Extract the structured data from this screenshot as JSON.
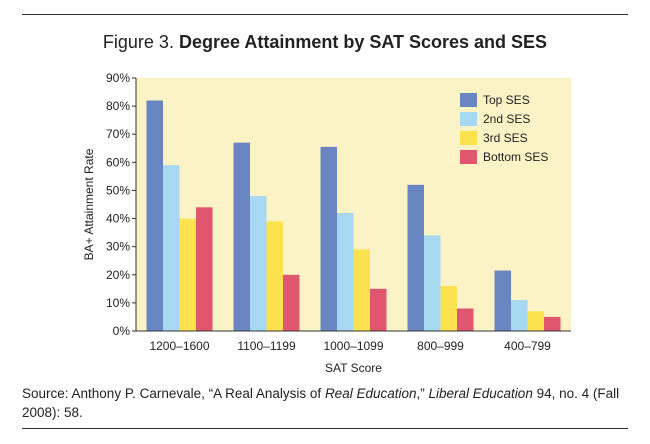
{
  "figure": {
    "label": "Figure 3.",
    "title": "Degree Attainment by SAT Scores and SES"
  },
  "source": {
    "prefix": "Source: Anthony P. Carnevale, “A Real Analysis of ",
    "italic1": "Real Education",
    "mid": ",” ",
    "italic2": "Liberal Education",
    "suffix": " 94, no. 4 (Fall 2008): 58."
  },
  "colors": {
    "plot_background": "#fbf3c6",
    "series": [
      "#6a86c2",
      "#a6d8f2",
      "#fde24f",
      "#e0566e"
    ]
  },
  "chart_data": {
    "type": "bar",
    "title": "Degree Attainment by SAT Scores and SES",
    "xlabel": "SAT Score",
    "ylabel": "BA+ Attainment Rate",
    "ylim": [
      0,
      90
    ],
    "y_ticks": [
      "0%",
      "10%",
      "20%",
      "30%",
      "40%",
      "50%",
      "60%",
      "70%",
      "80%",
      "90%"
    ],
    "grid": false,
    "legend_position": "top-right",
    "categories": [
      "1200–1600",
      "1100–1199",
      "1000–1099",
      "800–999",
      "400–799"
    ],
    "series": [
      {
        "name": "Top SES",
        "values": [
          82,
          67,
          65.5,
          52,
          21.5
        ]
      },
      {
        "name": "2nd SES",
        "values": [
          59,
          48,
          42,
          34,
          11
        ]
      },
      {
        "name": "3rd SES",
        "values": [
          40,
          39,
          29,
          16,
          7
        ]
      },
      {
        "name": "Bottom SES",
        "values": [
          44,
          20,
          15,
          8,
          5
        ]
      }
    ]
  }
}
